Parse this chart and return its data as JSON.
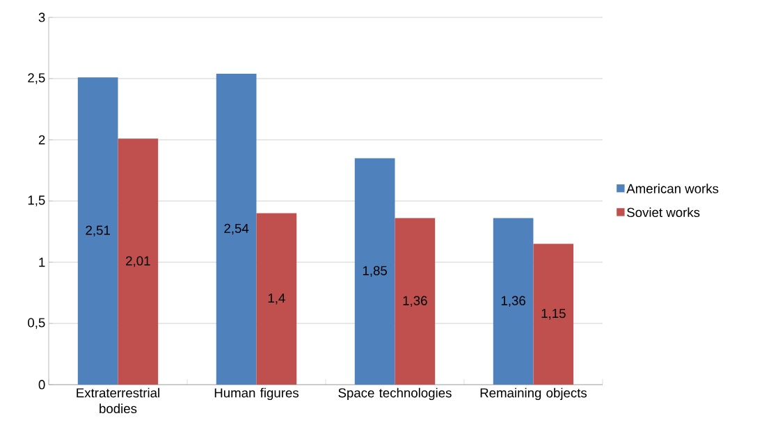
{
  "chart_data": {
    "type": "bar",
    "categories": [
      "Extraterrestrial bodies",
      "Human figures",
      "Space technologies",
      "Remaining objects"
    ],
    "series": [
      {
        "name": "American works",
        "color": "#4f81bd",
        "values": [
          2.51,
          2.54,
          1.85,
          1.36
        ],
        "value_labels": [
          "2,51",
          "2,54",
          "1,85",
          "1,36"
        ]
      },
      {
        "name": "Soviet works",
        "color": "#c0504d",
        "values": [
          2.01,
          1.4,
          1.36,
          1.15
        ],
        "value_labels": [
          "2,01",
          "1,4",
          "1,36",
          "1,15"
        ]
      }
    ],
    "ylim": [
      0,
      3
    ],
    "yticks": [
      0,
      {
        "value": 0.5,
        "label": "0,5"
      },
      1,
      {
        "value": 1.5,
        "label": "1,5"
      },
      2,
      {
        "value": 2.5,
        "label": "2,5"
      },
      3
    ],
    "grid": "y",
    "legend": "right"
  }
}
